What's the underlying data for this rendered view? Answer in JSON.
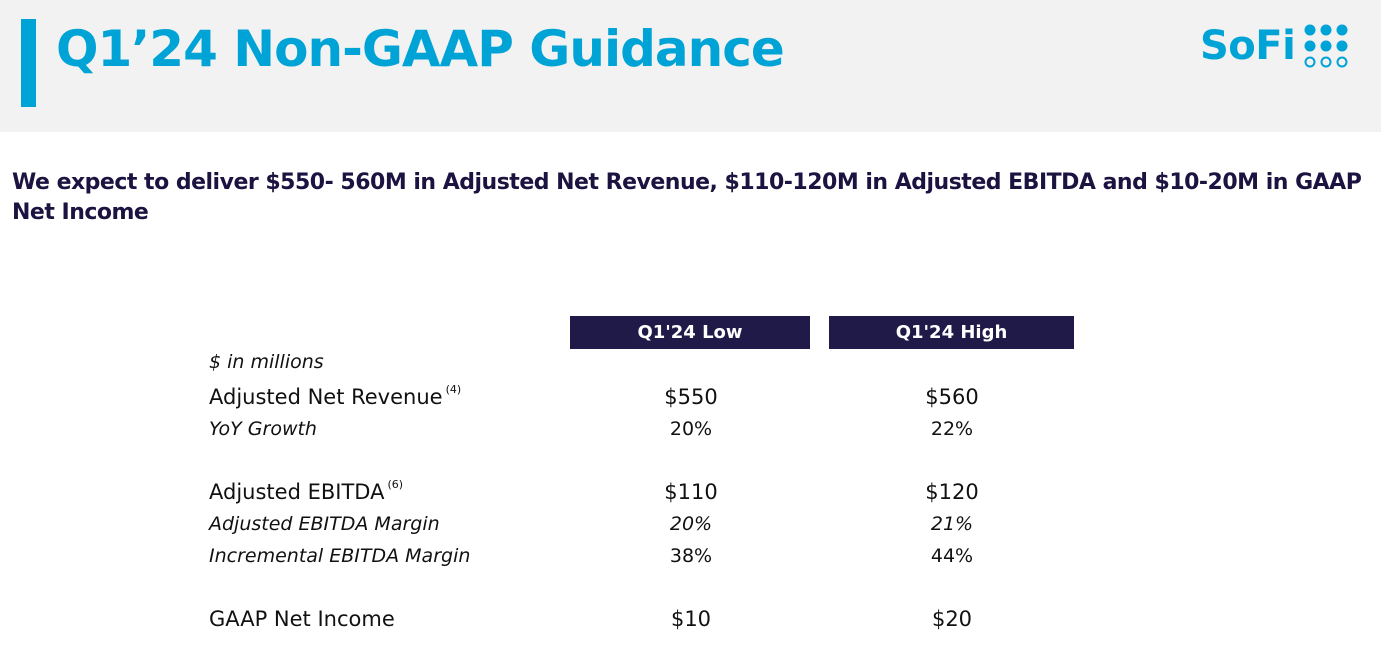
{
  "header": {
    "title": "Q1’24 Non-GAAP Guidance",
    "logo_text": "SoFi",
    "logo_icon": "sofi-dots-icon",
    "accent_color": "#00a3d6"
  },
  "headline": "We expect to deliver $550- 560M in Adjusted Net Revenue, $110-120M in Adjusted EBITDA and $10-20M in GAAP Net Income",
  "table": {
    "units": "$ in millions",
    "columns": [
      "Q1'24 Low",
      "Q1'24 High"
    ],
    "header_color": "#201a48",
    "rows": [
      {
        "label": "Adjusted Net Revenue",
        "footnote": "(4)",
        "low": "$550",
        "high": "$560"
      },
      {
        "label": "YoY Growth",
        "low": "20%",
        "high": "22%"
      },
      {
        "label": "Adjusted EBITDA",
        "footnote": "(6)",
        "low": "$110",
        "high": "$120"
      },
      {
        "label": "Adjusted EBITDA Margin",
        "low": "20%",
        "high": "21%"
      },
      {
        "label": "Incremental EBITDA Margin",
        "low": "38%",
        "high": "44%"
      },
      {
        "label": "GAAP Net Income",
        "low": "$10",
        "high": "$20"
      }
    ]
  }
}
